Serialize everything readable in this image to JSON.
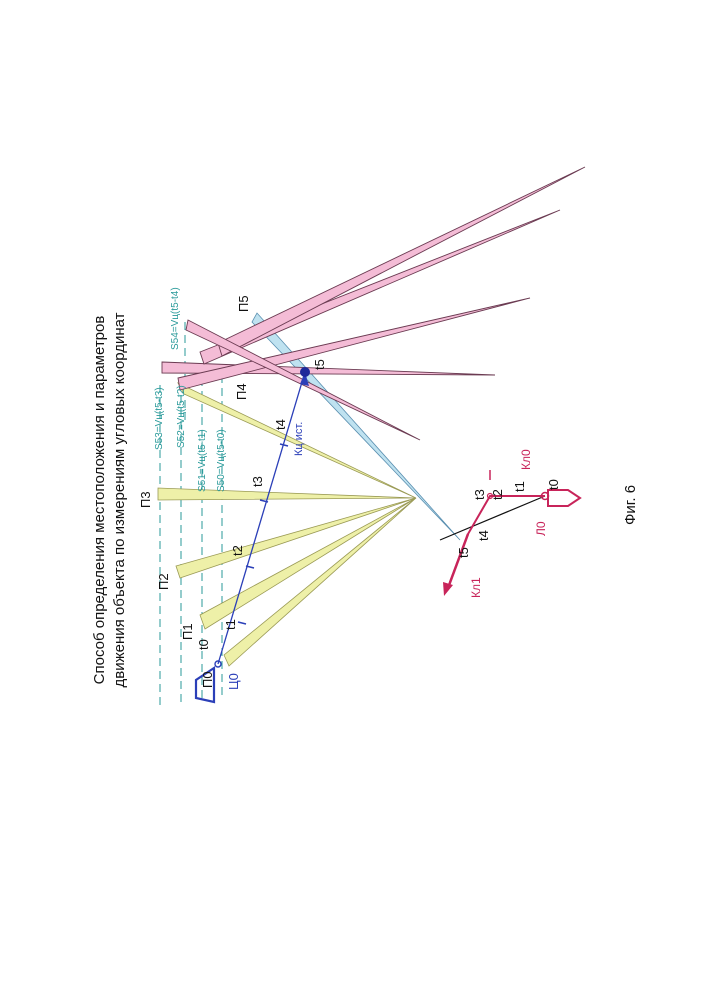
{
  "title": {
    "line1": "Способ определения местоположения и параметров",
    "line2": "движения объекта по измерениям угловых координат"
  },
  "caption": "Фиг. 6",
  "observer_positions": [
    "П0",
    "П1",
    "П2",
    "П3",
    "П4",
    "П5"
  ],
  "time_marks": [
    "t0",
    "t1",
    "t2",
    "t3",
    "t4",
    "t5"
  ],
  "distances": [
    "S50=Vц(t5-t0)",
    "S51=Vц(t5-t1)",
    "S52=Vц(t5-t2)",
    "S53=Vц(t5-t3)",
    "S54=Vц(t5-t4)"
  ],
  "target": {
    "start_label": "Ц0",
    "course_label": "Кц ист."
  },
  "carrier": {
    "start_label": "Л0",
    "course0_label": "Кл0",
    "course1_label": "Кл1"
  },
  "colors": {
    "sector_yellow": "#eef0a8",
    "sector_pink": "#f4bcd6",
    "sector_blue": "#bfe2f0",
    "teal": "#2a9a9a",
    "target_blue": "#2b3fb8",
    "carrier_red": "#c8245a"
  }
}
